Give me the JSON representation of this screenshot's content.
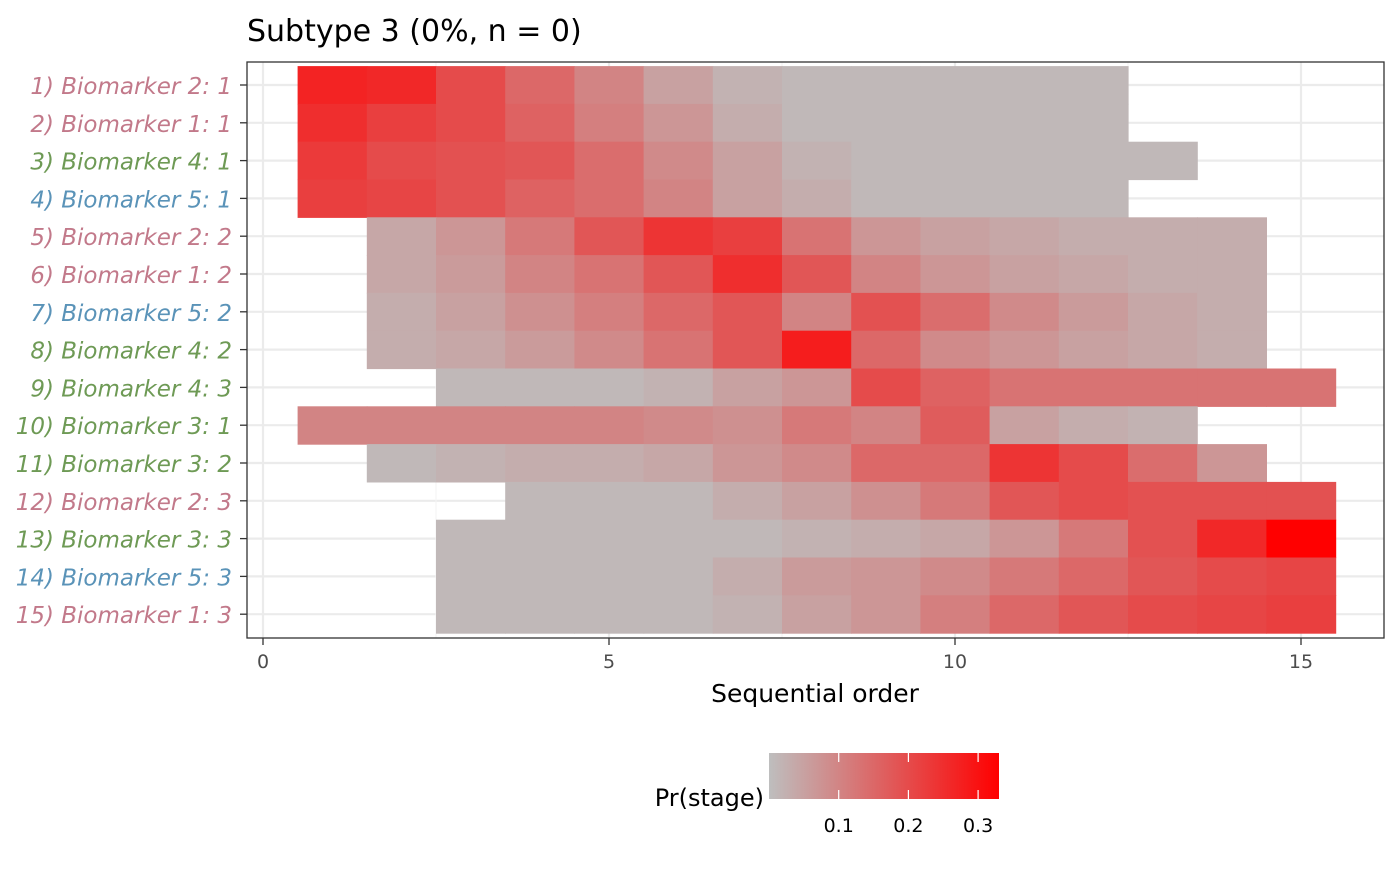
{
  "chart_data": {
    "type": "heatmap",
    "title": "Subtype 3 (0%, n = 0)",
    "xlabel": "Sequential order",
    "ylabel": "",
    "xlim": [
      0,
      15.5
    ],
    "x_ticks": [
      "0",
      "5",
      "10",
      "15"
    ],
    "grid": true,
    "rows": [
      {
        "label": "1) Biomarker 2: 1",
        "color": "#C2798A"
      },
      {
        "label": "2) Biomarker 1: 1",
        "color": "#C2798A"
      },
      {
        "label": "3) Biomarker 4: 1",
        "color": "#6E9A55"
      },
      {
        "label": "4) Biomarker 5: 1",
        "color": "#5A93B8"
      },
      {
        "label": "5) Biomarker 2: 2",
        "color": "#C2798A"
      },
      {
        "label": "6) Biomarker 1: 2",
        "color": "#C2798A"
      },
      {
        "label": "7) Biomarker 5: 2",
        "color": "#5A93B8"
      },
      {
        "label": "8) Biomarker 4: 2",
        "color": "#6E9A55"
      },
      {
        "label": "9) Biomarker 4: 3",
        "color": "#6E9A55"
      },
      {
        "label": "10) Biomarker 3: 1",
        "color": "#6E9A55"
      },
      {
        "label": "11) Biomarker 3: 2",
        "color": "#6E9A55"
      },
      {
        "label": "12) Biomarker 2: 3",
        "color": "#C2798A"
      },
      {
        "label": "13) Biomarker 3: 3",
        "color": "#6E9A55"
      },
      {
        "label": "14) Biomarker 5: 3",
        "color": "#5A93B8"
      },
      {
        "label": "15) Biomarker 1: 3",
        "color": "#C2798A"
      }
    ],
    "cells": [
      {
        "start": 1,
        "values": [
          0.27,
          0.26,
          0.2,
          0.15,
          0.1,
          0.05,
          0.02,
          0.01,
          0.01,
          0.01,
          0.01,
          0.01
        ]
      },
      {
        "start": 1,
        "values": [
          0.25,
          0.22,
          0.2,
          0.16,
          0.11,
          0.07,
          0.03,
          0.01,
          0.01,
          0.01,
          0.01,
          0.01
        ]
      },
      {
        "start": 1,
        "values": [
          0.23,
          0.2,
          0.19,
          0.18,
          0.14,
          0.09,
          0.05,
          0.02,
          0.01,
          0.01,
          0.01,
          0.01,
          0.01
        ]
      },
      {
        "start": 1,
        "values": [
          0.22,
          0.21,
          0.19,
          0.16,
          0.14,
          0.1,
          0.05,
          0.03,
          0.01,
          0.01,
          0.01,
          0.01
        ]
      },
      {
        "start": 2,
        "values": [
          0.04,
          0.07,
          0.12,
          0.18,
          0.24,
          0.22,
          0.13,
          0.07,
          0.05,
          0.04,
          0.03,
          0.03,
          0.03
        ]
      },
      {
        "start": 2,
        "values": [
          0.04,
          0.06,
          0.1,
          0.13,
          0.18,
          0.25,
          0.18,
          0.1,
          0.07,
          0.05,
          0.04,
          0.03,
          0.03
        ]
      },
      {
        "start": 2,
        "values": [
          0.03,
          0.05,
          0.08,
          0.11,
          0.15,
          0.18,
          0.1,
          0.19,
          0.14,
          0.09,
          0.06,
          0.04,
          0.03
        ]
      },
      {
        "start": 2,
        "values": [
          0.03,
          0.04,
          0.06,
          0.09,
          0.13,
          0.18,
          0.28,
          0.15,
          0.09,
          0.07,
          0.05,
          0.04,
          0.03
        ]
      },
      {
        "start": 3,
        "values": [
          0.01,
          0.01,
          0.01,
          0.02,
          0.05,
          0.07,
          0.2,
          0.16,
          0.13,
          0.13,
          0.13,
          0.13,
          0.13
        ]
      },
      {
        "start": 1,
        "values": [
          0.1,
          0.1,
          0.1,
          0.1,
          0.1,
          0.09,
          0.08,
          0.12,
          0.1,
          0.17,
          0.05,
          0.03,
          0.02
        ]
      },
      {
        "start": 2,
        "values": [
          0.01,
          0.02,
          0.03,
          0.03,
          0.04,
          0.07,
          0.09,
          0.15,
          0.15,
          0.24,
          0.2,
          0.14,
          0.07
        ]
      },
      {
        "start": 4,
        "values": [
          0.01,
          0.01,
          0.01,
          0.03,
          0.05,
          0.08,
          0.12,
          0.18,
          0.2,
          0.19,
          0.19,
          0.19
        ]
      },
      {
        "start": 3,
        "values": [
          0.01,
          0.01,
          0.01,
          0.01,
          0.01,
          0.02,
          0.03,
          0.04,
          0.07,
          0.12,
          0.19,
          0.26,
          0.33
        ]
      },
      {
        "start": 3,
        "values": [
          0.01,
          0.01,
          0.01,
          0.01,
          0.03,
          0.06,
          0.07,
          0.09,
          0.12,
          0.15,
          0.18,
          0.2,
          0.21
        ]
      },
      {
        "start": 3,
        "values": [
          0.01,
          0.01,
          0.01,
          0.01,
          0.02,
          0.05,
          0.07,
          0.11,
          0.15,
          0.18,
          0.2,
          0.21,
          0.22
        ]
      }
    ],
    "color_scale": {
      "low": "#BEBEBE",
      "high": "#FF0000",
      "min": 0,
      "max": 0.33
    },
    "legend": {
      "title": "Pr(stage)",
      "position": "bottom",
      "ticks": [
        "0.1",
        "0.2",
        "0.3"
      ],
      "tick_values": [
        0.1,
        0.2,
        0.3
      ]
    }
  }
}
